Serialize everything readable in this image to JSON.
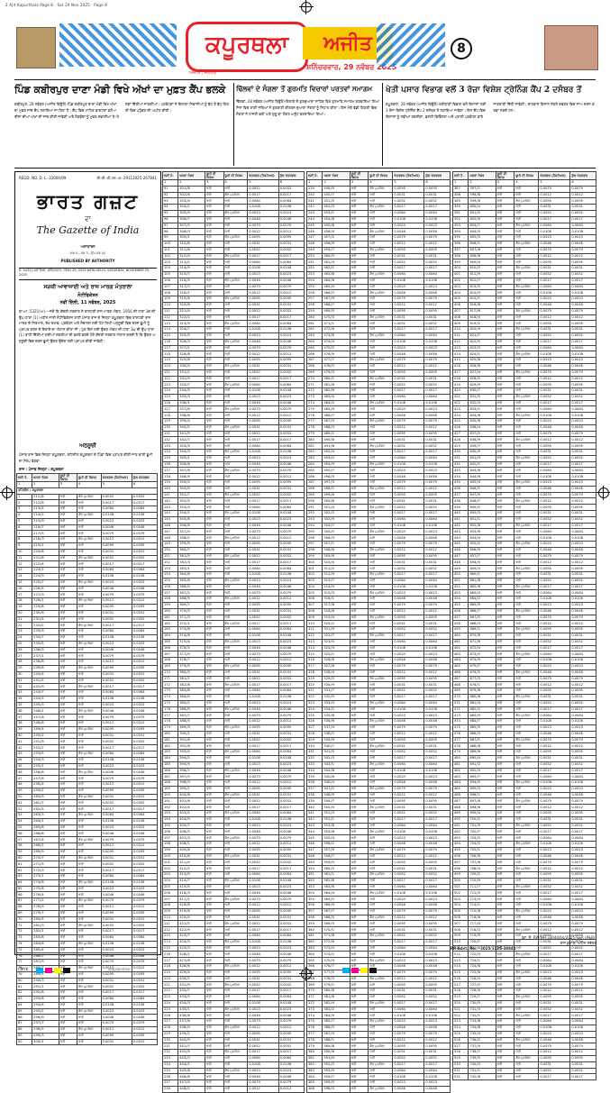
{
  "slug": "2 Ajit Kapurthala Page 8 · Sat 29 Nov 2025 · Page 8",
  "masthead": {
    "city": "ਕਪੂਰਥਲਾ",
    "brand": "ਅਜੀਤ",
    "sub": "ਅਜੀਤ , ਜਲੰਧਰ",
    "date": "ਸ਼ਨਿੱਚਰਵਾਰ, 29 ਨਵੰਬਰ 2025",
    "page": "8"
  },
  "stories": [
    {
      "headline": "ਪਿੰਡ ਕਬੀਰਪੁਰ ਦਾਣਾ ਮੰਡੀ ਵਿਖੇ ਅੱਖਾਂ ਦਾ ਮੁਫ਼ਤ ਕੈਂਪ ਭਲਕੇ",
      "body": "ਕਬੀਰਪੁਰ, 28 ਨਵੰਬਰ (ਅਜੀਤ ਬਿਊਰੋ)-ਪਿੰਡ ਕਬੀਰਪੁਰ ਦਾਣਾ ਮੰਡੀ ਵਿਖੇ ਅੱਖਾਂ ਦਾ ਮੁਫ਼ਤ ਜਾਂਚ ਕੈਂਪ ਲਗਾਇਆ ਜਾ ਰਿਹਾ ਹੈ। ਕੈਂਪ ਵਿਚ ਮਾਹਿਰ ਡਾਕਟਰਾਂ ਵਲੋਂ ਮਰੀਜ਼ਾਂ ਦੀਆਂ ਅੱਖਾਂ ਦੀ ਜਾਂਚ ਕੀਤੀ ਜਾਵੇਗੀ ਅਤੇ ਲੋੜਵੰਦਾਂ ਨੂੰ ਮੁਫ਼ਤ ਦਵਾਈਆਂ ਤੇ ਐਨਕਾਂ ਦਿੱਤੀਆਂ ਜਾਣਗੀਆਂ। ਪ੍ਰਬੰਧਕਾਂ ਨੇ ਇਲਾਕਾ ਨਿਵਾਸੀਆਂ ਨੂੰ ਵੱਧ ਤੋਂ ਵੱਧ ਗਿਣਤੀ ਵਿਚ ਪਹੁੰਚਣ ਦੀ ਅਪੀਲ ਕੀਤੀ।"
    },
    {
      "headline": "ਢਿੱਲਵਾਂ ਦੇ ਸੰਗਲਾ ਤੋਂ ਗੁਰਮਤਿ ਵਿਚਾਰਾਂ ਪਰਤਵਾਂ ਸਮਾਗਮ",
      "body": "ਢਿੱਲਵਾਂ, 28 ਨਵੰਬਰ (ਅਜੀਤ ਬਿਊਰੋ)-ਇਲਾਕੇ ਦੇ ਗੁਰਦੁਆਰਾ ਸਾਹਿਬ ਵਿਖੇ ਗੁਰਮਤਿ ਸਮਾਗਮ ਕਰਵਾਇਆ ਗਿਆ ਜਿਸ ਵਿਚ ਰਾਗੀ ਜਥਿਆਂ ਨੇ ਗੁਰਬਾਣੀ ਕੀਰਤਨ ਦੁਆਰਾ ਸੰਗਤਾਂ ਨੂੰ ਨਿਹਾਲ ਕੀਤਾ। ਇਸ ਮੌਕੇ ਵੱਡੀ ਗਿਣਤੀ ਵਿਚ ਸੰਗਤਾਂ ਨੇ ਹਾਜ਼ਰੀ ਭਰੀ ਅਤੇ ਗੁਰੂ ਕਾ ਲੰਗਰ ਅਤੁੱਟ ਵਰਤਾਇਆ ਗਿਆ।"
    },
    {
      "headline": "ਖੇਤੀ ਪਸਾਰ ਵਿਭਾਗ ਵਲੋਂ 3 ਰੋਜ਼ਾ ਵਿਸ਼ੇਸ਼ ਟ੍ਰੇਨਿੰਗ ਕੈਂਪ 2 ਦਸੰਬਰ ਤੋਂ",
      "body": "ਕਪੂਰਥਲਾ, 28 ਨਵੰਬਰ (ਅਜੀਤ ਬਿਊਰੋ)-ਖੇਤੀਬਾੜੀ ਵਿਭਾਗ ਵਲੋਂ ਕਿਸਾਨਾਂ ਲਈ 3 ਰੋਜ਼ਾ ਵਿਸ਼ੇਸ਼ ਟ੍ਰੇਨਿੰਗ ਕੈਂਪ 2 ਦਸੰਬਰ ਤੋਂ ਲਗਾਇਆ ਜਾਵੇਗਾ। ਇਸ ਕੈਂਪ ਵਿਚ ਕਿਸਾਨਾਂ ਨੂੰ ਨਵੀਆਂ ਤਕਨੀਕਾਂ, ਫ਼ਸਲੀ ਵਿਭਿੰਨਤਾ ਅਤੇ ਪਰਾਲੀ ਪ੍ਰਬੰਧਨ ਬਾਰੇ ਜਾਣਕਾਰੀ ਦਿੱਤੀ ਜਾਵੇਗੀ। ਚਾਹਵਾਨ ਕਿਸਾਨ ਨੇੜਲੇ ਦਫ਼ਤਰ ਵਿਚ ਨਾਂਅ ਦਰਜ ਕਰਵਾ ਸਕਦੇ ਹਨ।"
    }
  ],
  "gazette": {
    "reg_left": "REGD. NO. D. L.-33004/99",
    "reg_right": "सी.जी.-डी.एल.-अ.-29112025-267841",
    "title": "ਭਾਰਤ ਗਜ਼ਟ",
    "dedication": "ਦਾ",
    "title_en": "The Gazette of India",
    "extraordinary": "ਅਸਾਧਾਰਨ",
    "part": "ਭਾਗ II—ਖੰਡ 3—ਉਪ-ਖੰਡ (ii)",
    "published": "PUBLISHED BY AUTHORITY",
    "datebar": "ਸੰ. 5432]  ਨਵੀਂ ਦਿੱਲੀ, ਸ਼ਨਿੱਚਰਵਾਰ, ਨਵੰਬਰ 29, 2025  NEW DELHI, SATURDAY, NOVEMBER 29, 2025",
    "ministry": "ਸੜਕੀ ਆਵਾਜਾਈ ਅਤੇ ਰਾਜ ਮਾਰਗ ਮੰਤਰਾਲਾ",
    "notification": "ਨੋਟੀਫਿਕੇਸ਼ਨ",
    "notif_date": "ਨਵੀਂ ਦਿੱਲੀ, 11 ਨਵੰਬਰ, 2025",
    "body": "ਕਾ.ਆ. 5321(ਅ).—ਜਦੋਂ ਕਿ ਕੇਂਦਰੀ ਸਰਕਾਰ ਨੇ ਰਾਸ਼ਟਰੀ ਰਾਜ ਮਾਰਗ ਐਕਟ, 1956 ਦੀ ਧਾਰਾ 3ਕ ਦੀ ਉਪ-ਧਾਰਾ (1) ਅਧੀਨ ਜਾਰੀ ਨੋਟੀਫਿਕੇਸ਼ਨ ਰਾਹੀਂ ਪੰਜਾਬ ਰਾਜ ਦੇ ਜ਼ਿਲ੍ਹਾ ਕਪੂਰਥਲਾ ਵਿਚ ਰਾਸ਼ਟਰੀ ਰਾਜ ਮਾਰਗ ਦੇ ਨਿਰਮਾਣ, ਰੱਖ-ਰਖਾਵ, ਪ੍ਰਬੰਧਨ ਅਤੇ ਸੰਚਾਲਨ ਲਈ ਹੇਠ ਲਿਖੀ ਅਨੁਸੂਚੀ ਵਿਚ ਦਰਜ ਭੂਮੀ ਨੂੰ ਪ੍ਰਾਪਤ ਕਰਨ ਦੇ ਇਰਾਦੇ ਦਾ ਐਲਾਨ ਕੀਤਾ ਸੀ। ਹੁਣ ਇਸ ਲਈ ਉਕਤ ਐਕਟ ਦੀ ਧਾਰਾ 3ਘ ਦੀ ਉਪ-ਧਾਰਾ (1) ਰਾਹੀਂ ਦਿੱਤੀਆਂ ਗਈਆਂ ਸ਼ਕਤੀਆਂ ਦੀ ਵਰਤੋਂ ਕਰਦੇ ਹੋਏ ਕੇਂਦਰੀ ਸਰਕਾਰ ਐਲਾਨ ਕਰਦੀ ਹੈ ਕਿ ਉਕਤ ਅਨੁਸੂਚੀ ਵਿਚ ਦਰਜ ਭੂਮੀ ਉਕਤ ਉਦੇਸ਼ ਲਈ ਪ੍ਰਾਪਤ ਕੀਤੀ ਜਾਵੇਗੀ।",
    "schedule": "ਅਨੁਸੂਚੀ",
    "schedule_note": "ਪੰਜਾਬ ਰਾਜ ਵਿਚ ਜ਼ਿਲ੍ਹਾ ਕਪੂਰਥਲਾ, ਤਹਿਸੀਲ ਕਪੂਰਥਲਾ ਦੇ ਪਿੰਡਾਂ ਵਿਚ ਪ੍ਰਾਪਤ ਕੀਤੀ ਜਾਣ ਵਾਲੀ ਭੂਮੀ ਦਾ ਸੰਖੇਪ ਵੇਰਵਾ",
    "table_meta": "ਰਾਜ : ਪੰਜਾਬ     ਜ਼ਿਲ੍ਹਾ : ਕਪੂਰਥਲਾ",
    "section": "ਤਹਿਸੀਲ : ਕਪੂਰਥਲਾ"
  },
  "table": {
    "headers": [
      "ਲੜੀ ਨੰ.",
      "ਖਸਰਾ ਨੰਬਰ",
      "ਭੂਮੀ ਦੀ ਕਿਸਮ",
      "ਭੂਮੀ ਦੀ ਕਿਸਮ",
      "ਖੇਤਰਫਲ (ਹੈਕਟੇਅਰ)",
      "ਕੁੱਲ ਖੇਤਰਫਲ"
    ],
    "land_types": [
      "ਖੇਤੀ",
      "ਗੈਰ ਮੁਮਕਿਨ",
      "ਖੇਤੀ",
      "ਖੇਤੀ",
      "ਗੈਰ ਮੁਮਕਿਨ",
      "ਖੇਤੀ",
      "ਖੇਤੀ"
    ],
    "khasra_base": 210,
    "area_values": [
      "0.0031",
      "0.0052",
      "0.0017",
      "0.0064",
      "0.0108",
      "0.0023",
      "0.0046",
      "0.0079",
      "0.0012",
      "0.0095"
    ]
  },
  "signature": {
    "file": "[ਫ਼ਾ. ਸੰ. RW/NH-33044/64/2025-S&R (P&B)]",
    "officer": "ਰਾਜ ਕੁਮਾਰ, ਅਧੀਨ ਸਕੱਤਰ",
    "ad_code": "PR-Advt. No. - 2025/1125-38841"
  },
  "footer": {
    "label": "CMYK",
    "page_code": "ajitjalandhar"
  }
}
